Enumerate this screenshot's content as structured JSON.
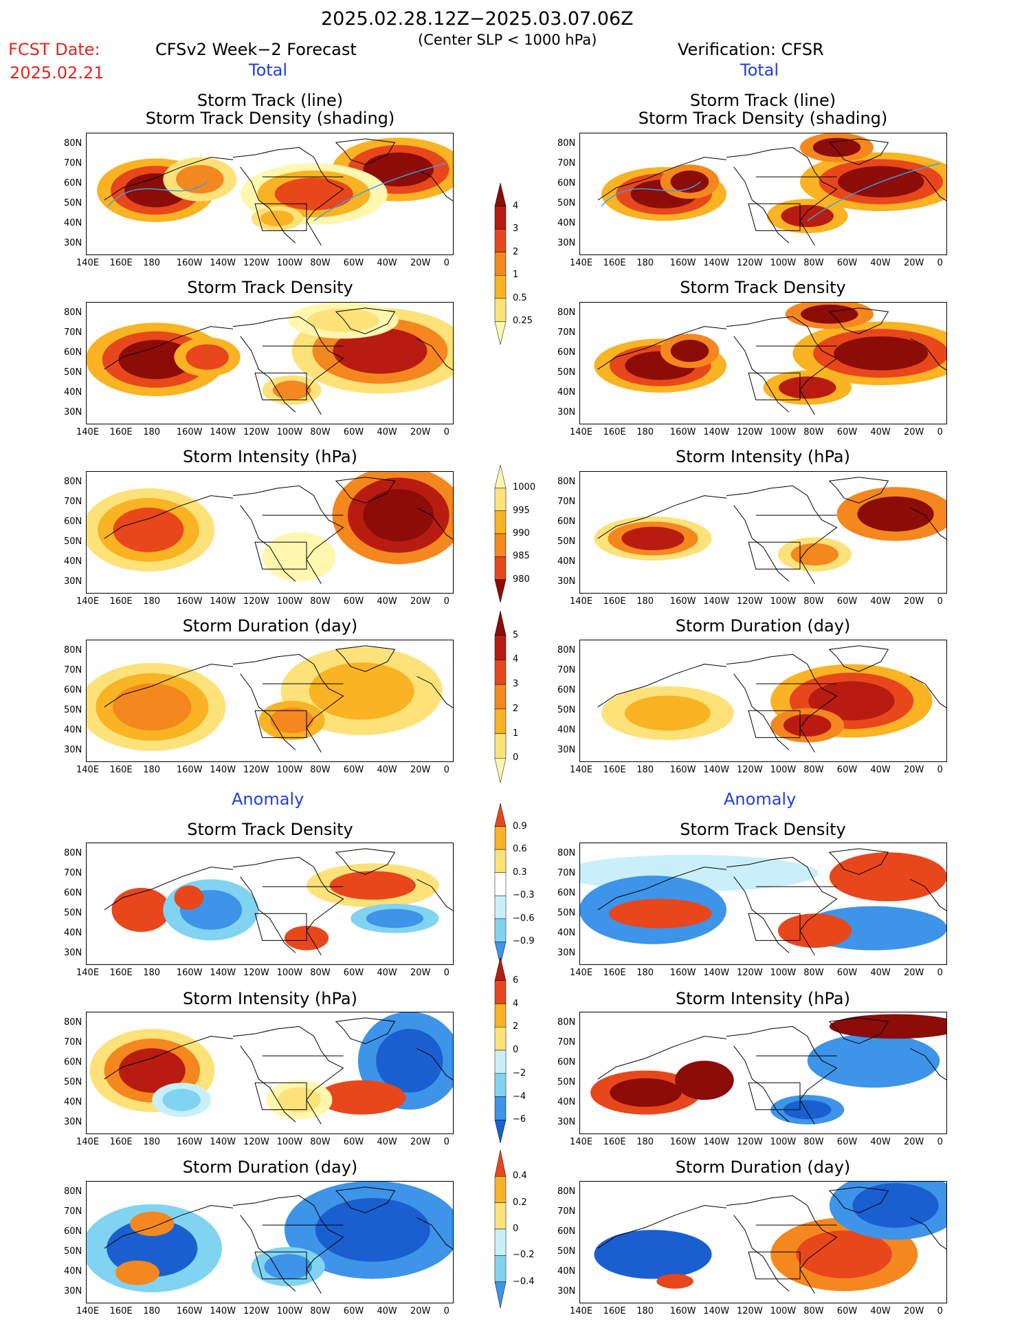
{
  "header": {
    "period": "2025.02.28.12Z−2025.03.07.06Z",
    "subtitle": "(Center SLP < 1000 hPa)",
    "fcst_label": "FCST Date:",
    "fcst_date": "2025.02.21",
    "left_title": "CFSv2 Week−2 Forecast",
    "right_title": "Verification: CFSR",
    "total_left": "Total",
    "total_right": "Total",
    "anomaly_left": "Anomaly",
    "anomaly_right": "Anomaly"
  },
  "panel_titles": {
    "track_line": "Storm Track (line)",
    "track_density_shading": "Storm Track Density (shading)",
    "track_density": "Storm Track Density",
    "intensity": "Storm Intensity (hPa)",
    "duration": "Storm Duration (day)"
  },
  "axes": {
    "lat_labels": [
      "80N",
      "70N",
      "60N",
      "50N",
      "40N",
      "30N"
    ],
    "lon_labels": [
      "140E",
      "160E",
      "180",
      "160W",
      "140W",
      "120W",
      "100W",
      "80W",
      "60W",
      "40W",
      "20W",
      "0"
    ]
  },
  "colorbars": {
    "track_density": [
      "4",
      "3",
      "2",
      "1",
      "0.5",
      "0.25"
    ],
    "intensity": [
      "1000",
      "995",
      "990",
      "985",
      "980"
    ],
    "duration": [
      "5",
      "4",
      "3",
      "2",
      "1",
      "0"
    ],
    "anom_density": [
      "0.9",
      "0.6",
      "0.3",
      "−0.3",
      "−0.6",
      "−0.9"
    ],
    "anom_intensity": [
      "6",
      "4",
      "2",
      "0",
      "−2",
      "−4",
      "−6"
    ],
    "anom_duration": [
      "0.4",
      "0.2",
      "0",
      "−0.2",
      "−0.4"
    ]
  },
  "palettes": {
    "warm": [
      "#fff7b0",
      "#fde27a",
      "#f9b323",
      "#f5871f",
      "#e8471c",
      "#b81c10",
      "#8c0c08"
    ],
    "cool": [
      "#c9f0fa",
      "#80d4f2",
      "#3d94e8",
      "#1a5fd0"
    ],
    "land_line": "#000000",
    "track_line": "#3aa0e0"
  }
}
